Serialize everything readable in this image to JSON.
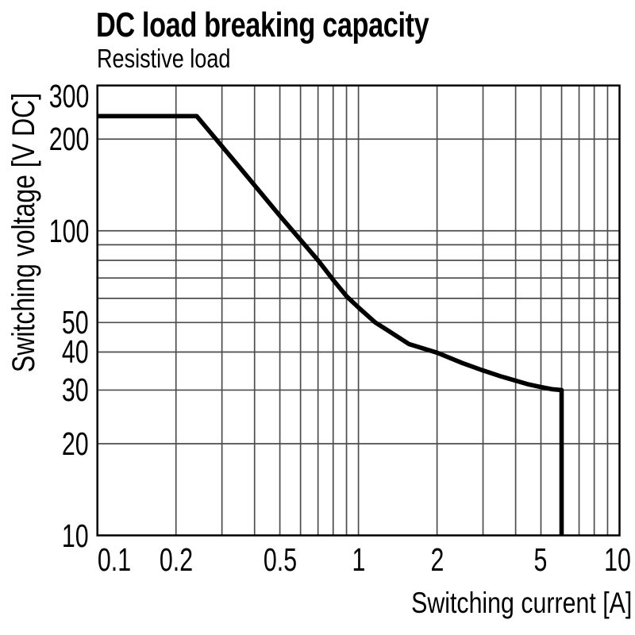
{
  "header": {
    "title": "DC load breaking capacity",
    "subtitle": "Resistive load"
  },
  "colors": {
    "background": "#ffffff",
    "grid": "#4d4d4d",
    "frame": "#000000",
    "curve": "#000000",
    "text": "#000000"
  },
  "chart_data": {
    "type": "line",
    "title": "DC load breaking capacity",
    "subtitle": "Resistive load",
    "xlabel": "Switching current [A]",
    "ylabel": "Switching voltage [V DC]",
    "grid": true,
    "legend": false,
    "x_axis": {
      "scale": "log",
      "min": 0.1,
      "max": 10,
      "unit": "A",
      "gridlines": [
        0.2,
        0.3,
        0.4,
        0.5,
        0.6,
        0.7,
        0.8,
        0.9,
        1,
        2,
        3,
        4,
        5,
        6,
        7,
        8,
        9
      ],
      "ticks": [
        {
          "v": 0.1,
          "label": "0.1",
          "dx": 21
        },
        {
          "v": 0.2,
          "label": "0.2",
          "dx": 0
        },
        {
          "v": 0.5,
          "label": "0.5",
          "dx": 0
        },
        {
          "v": 1,
          "label": "1",
          "dx": 0
        },
        {
          "v": 2,
          "label": "2",
          "dx": 0
        },
        {
          "v": 5,
          "label": "5",
          "dx": 0
        },
        {
          "v": 10,
          "label": "10",
          "dx": -3
        }
      ]
    },
    "y_axis": {
      "scale": "log",
      "min": 10,
      "max": 300,
      "unit": "V DC",
      "gridlines": [
        20,
        30,
        40,
        50,
        60,
        70,
        80,
        90,
        100,
        200
      ],
      "ticks": [
        {
          "v": 300,
          "label": "300",
          "dy": 13
        },
        {
          "v": 200,
          "label": "200",
          "dy": 0
        },
        {
          "v": 100,
          "label": "100",
          "dy": 0
        },
        {
          "v": 50,
          "label": "50",
          "dy": 0
        },
        {
          "v": 40,
          "label": "40",
          "dy": 0
        },
        {
          "v": 30,
          "label": "30",
          "dy": 0
        },
        {
          "v": 20,
          "label": "20",
          "dy": 0
        },
        {
          "v": 10,
          "label": "10",
          "dy": 0
        }
      ]
    },
    "series": [
      {
        "name": "DC breaking capacity, resistive load",
        "color": "#000000",
        "points": [
          [
            0.1,
            238
          ],
          [
            0.24,
            238
          ],
          [
            0.35,
            162
          ],
          [
            0.5,
            112
          ],
          [
            0.56,
            100
          ],
          [
            0.7,
            80
          ],
          [
            0.8,
            69
          ],
          [
            0.9,
            61
          ],
          [
            1.0,
            56
          ],
          [
            1.16,
            50
          ],
          [
            1.3,
            47
          ],
          [
            1.56,
            42.5
          ],
          [
            2.0,
            39.8
          ],
          [
            2.5,
            36.8
          ],
          [
            3.0,
            34.8
          ],
          [
            3.5,
            33.3
          ],
          [
            4.0,
            32.2
          ],
          [
            4.5,
            31.3
          ],
          [
            5.0,
            30.7
          ],
          [
            5.5,
            30.2
          ],
          [
            6.0,
            30
          ],
          [
            6.0,
            10
          ]
        ]
      }
    ]
  }
}
